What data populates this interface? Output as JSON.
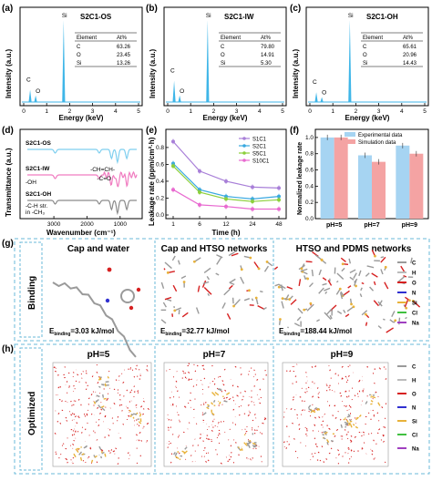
{
  "chart_data": [
    {
      "id": "a",
      "type": "line",
      "panel_label": "(a)",
      "title": "S2C1-OS",
      "xlabel": "Energy (keV)",
      "ylabel": "Intensity (a.u.)",
      "xticks": [
        "0",
        "1",
        "2",
        "3",
        "4",
        "5"
      ],
      "peak_labels": [
        "C",
        "O",
        "Si"
      ],
      "peaks": [
        {
          "x": 0.28,
          "y": 0.15
        },
        {
          "x": 0.52,
          "y": 0.08
        },
        {
          "x": 1.74,
          "y": 1.0
        }
      ],
      "table": {
        "headers": [
          "Element",
          "At%"
        ],
        "rows": [
          [
            "C",
            "63.26"
          ],
          [
            "O",
            "23.45"
          ],
          [
            "Si",
            "13.26"
          ]
        ]
      }
    },
    {
      "id": "b",
      "type": "line",
      "panel_label": "(b)",
      "title": "S2C1-IW",
      "xlabel": "Energy (keV)",
      "ylabel": "Intensity (a.u.)",
      "xticks": [
        "0",
        "1",
        "2",
        "3",
        "4",
        "5"
      ],
      "peak_labels": [
        "C",
        "O",
        "Si"
      ],
      "peaks": [
        {
          "x": 0.28,
          "y": 0.26
        },
        {
          "x": 0.52,
          "y": 0.08
        },
        {
          "x": 1.74,
          "y": 1.0
        }
      ],
      "table": {
        "headers": [
          "Element",
          "At%"
        ],
        "rows": [
          [
            "C",
            "79.80"
          ],
          [
            "O",
            "14.91"
          ],
          [
            "Si",
            "5.30"
          ]
        ]
      }
    },
    {
      "id": "c",
      "type": "line",
      "panel_label": "(c)",
      "title": "S2C1-OH",
      "xlabel": "Energy (keV)",
      "ylabel": "Intensity (a.u.)",
      "xticks": [
        "0",
        "1",
        "2",
        "3",
        "4",
        "5"
      ],
      "peak_labels": [
        "C",
        "O",
        "Si"
      ],
      "peaks": [
        {
          "x": 0.28,
          "y": 0.12
        },
        {
          "x": 0.52,
          "y": 0.06
        },
        {
          "x": 1.74,
          "y": 1.0
        }
      ],
      "table": {
        "headers": [
          "Element",
          "At%"
        ],
        "rows": [
          [
            "C",
            "65.61"
          ],
          [
            "O",
            "20.96"
          ],
          [
            "Si",
            "14.43"
          ]
        ]
      }
    },
    {
      "id": "d",
      "type": "line",
      "panel_label": "(d)",
      "xlabel": "Wavenumber (cm⁻¹)",
      "ylabel": "Transmittance (a.u.)",
      "xticks": [
        "3000",
        "2000",
        "1000"
      ],
      "series_labels": [
        "S2C1-OS",
        "S2C1-IW",
        "S2C1-OH"
      ],
      "annotations": [
        "-OH",
        "-CH=CH-",
        "-C=O",
        "-C-H str.",
        "in -CH₃"
      ]
    },
    {
      "id": "e",
      "type": "line",
      "panel_label": "(e)",
      "xlabel": "Time (h)",
      "ylabel": "Leakage rate (ppm/cm²·h)",
      "x": [
        1,
        6,
        12,
        24,
        48
      ],
      "xticks": [
        "1",
        "6",
        "12",
        "24",
        "48"
      ],
      "yticks": [
        "0.0",
        "0.2",
        "0.4",
        "0.6",
        "0.8"
      ],
      "ylim": [
        0,
        0.95
      ],
      "legend_position": "top-right",
      "series": [
        {
          "name": "S1C1",
          "color": "#a87fd8",
          "values": [
            0.87,
            0.52,
            0.4,
            0.33,
            0.32
          ]
        },
        {
          "name": "S2C1",
          "color": "#39a8e0",
          "values": [
            0.61,
            0.3,
            0.22,
            0.19,
            0.22
          ]
        },
        {
          "name": "S5C1",
          "color": "#8ccf3b",
          "values": [
            0.58,
            0.27,
            0.19,
            0.16,
            0.18
          ]
        },
        {
          "name": "S10C1",
          "color": "#e86ad0",
          "values": [
            0.3,
            0.12,
            0.1,
            0.07,
            0.07
          ]
        }
      ]
    },
    {
      "id": "f",
      "type": "bar",
      "panel_label": "(f)",
      "ylabel": "Normalized leakage rate",
      "categories": [
        "pH=5",
        "pH=7",
        "pH=9"
      ],
      "yticks": [
        "0.0",
        "0.2",
        "0.4",
        "0.6",
        "0.8",
        "1.0"
      ],
      "ylim": [
        0,
        1.1
      ],
      "legend_position": "top",
      "series": [
        {
          "name": "Experimental data",
          "color": "#a6d4f2",
          "values": [
            1.0,
            0.78,
            0.9
          ]
        },
        {
          "name": "Simulation data",
          "color": "#f4a3a3",
          "values": [
            1.0,
            0.7,
            0.8
          ]
        }
      ]
    }
  ],
  "sections": {
    "g": {
      "label": "(g)",
      "row_label": "Binding",
      "columns": [
        {
          "title": "Cap and water",
          "energy": "Eₙₙ"
        },
        {
          "title": "Cap and HTSO networks"
        },
        {
          "title": "HTSO and PDMS networks"
        }
      ],
      "energies": [
        "=3.03 kJ/mol",
        "=32.77 kJ/mol",
        "=188.44 kJ/mol"
      ],
      "energy_prefix": "E",
      "energy_sub": "binding",
      "legend": [
        "C",
        "H",
        "O",
        "N",
        "Si",
        "Cl",
        "Na"
      ]
    },
    "h": {
      "label": "(h)",
      "row_label": "Optimized",
      "columns": [
        "pH=5",
        "pH=7",
        "pH=9"
      ],
      "legend": [
        "C",
        "H",
        "O",
        "N",
        "Si",
        "Cl",
        "Na"
      ]
    }
  },
  "colors": {
    "eds": "#3fb6e8",
    "atoms": {
      "C": "#9a9a9a",
      "H": "#ffffff",
      "O": "#d62020",
      "N": "#3030d0",
      "Si": "#e8b23a",
      "Cl": "#40c040",
      "Na": "#a040c0"
    },
    "dash": "#6ab8d8"
  }
}
